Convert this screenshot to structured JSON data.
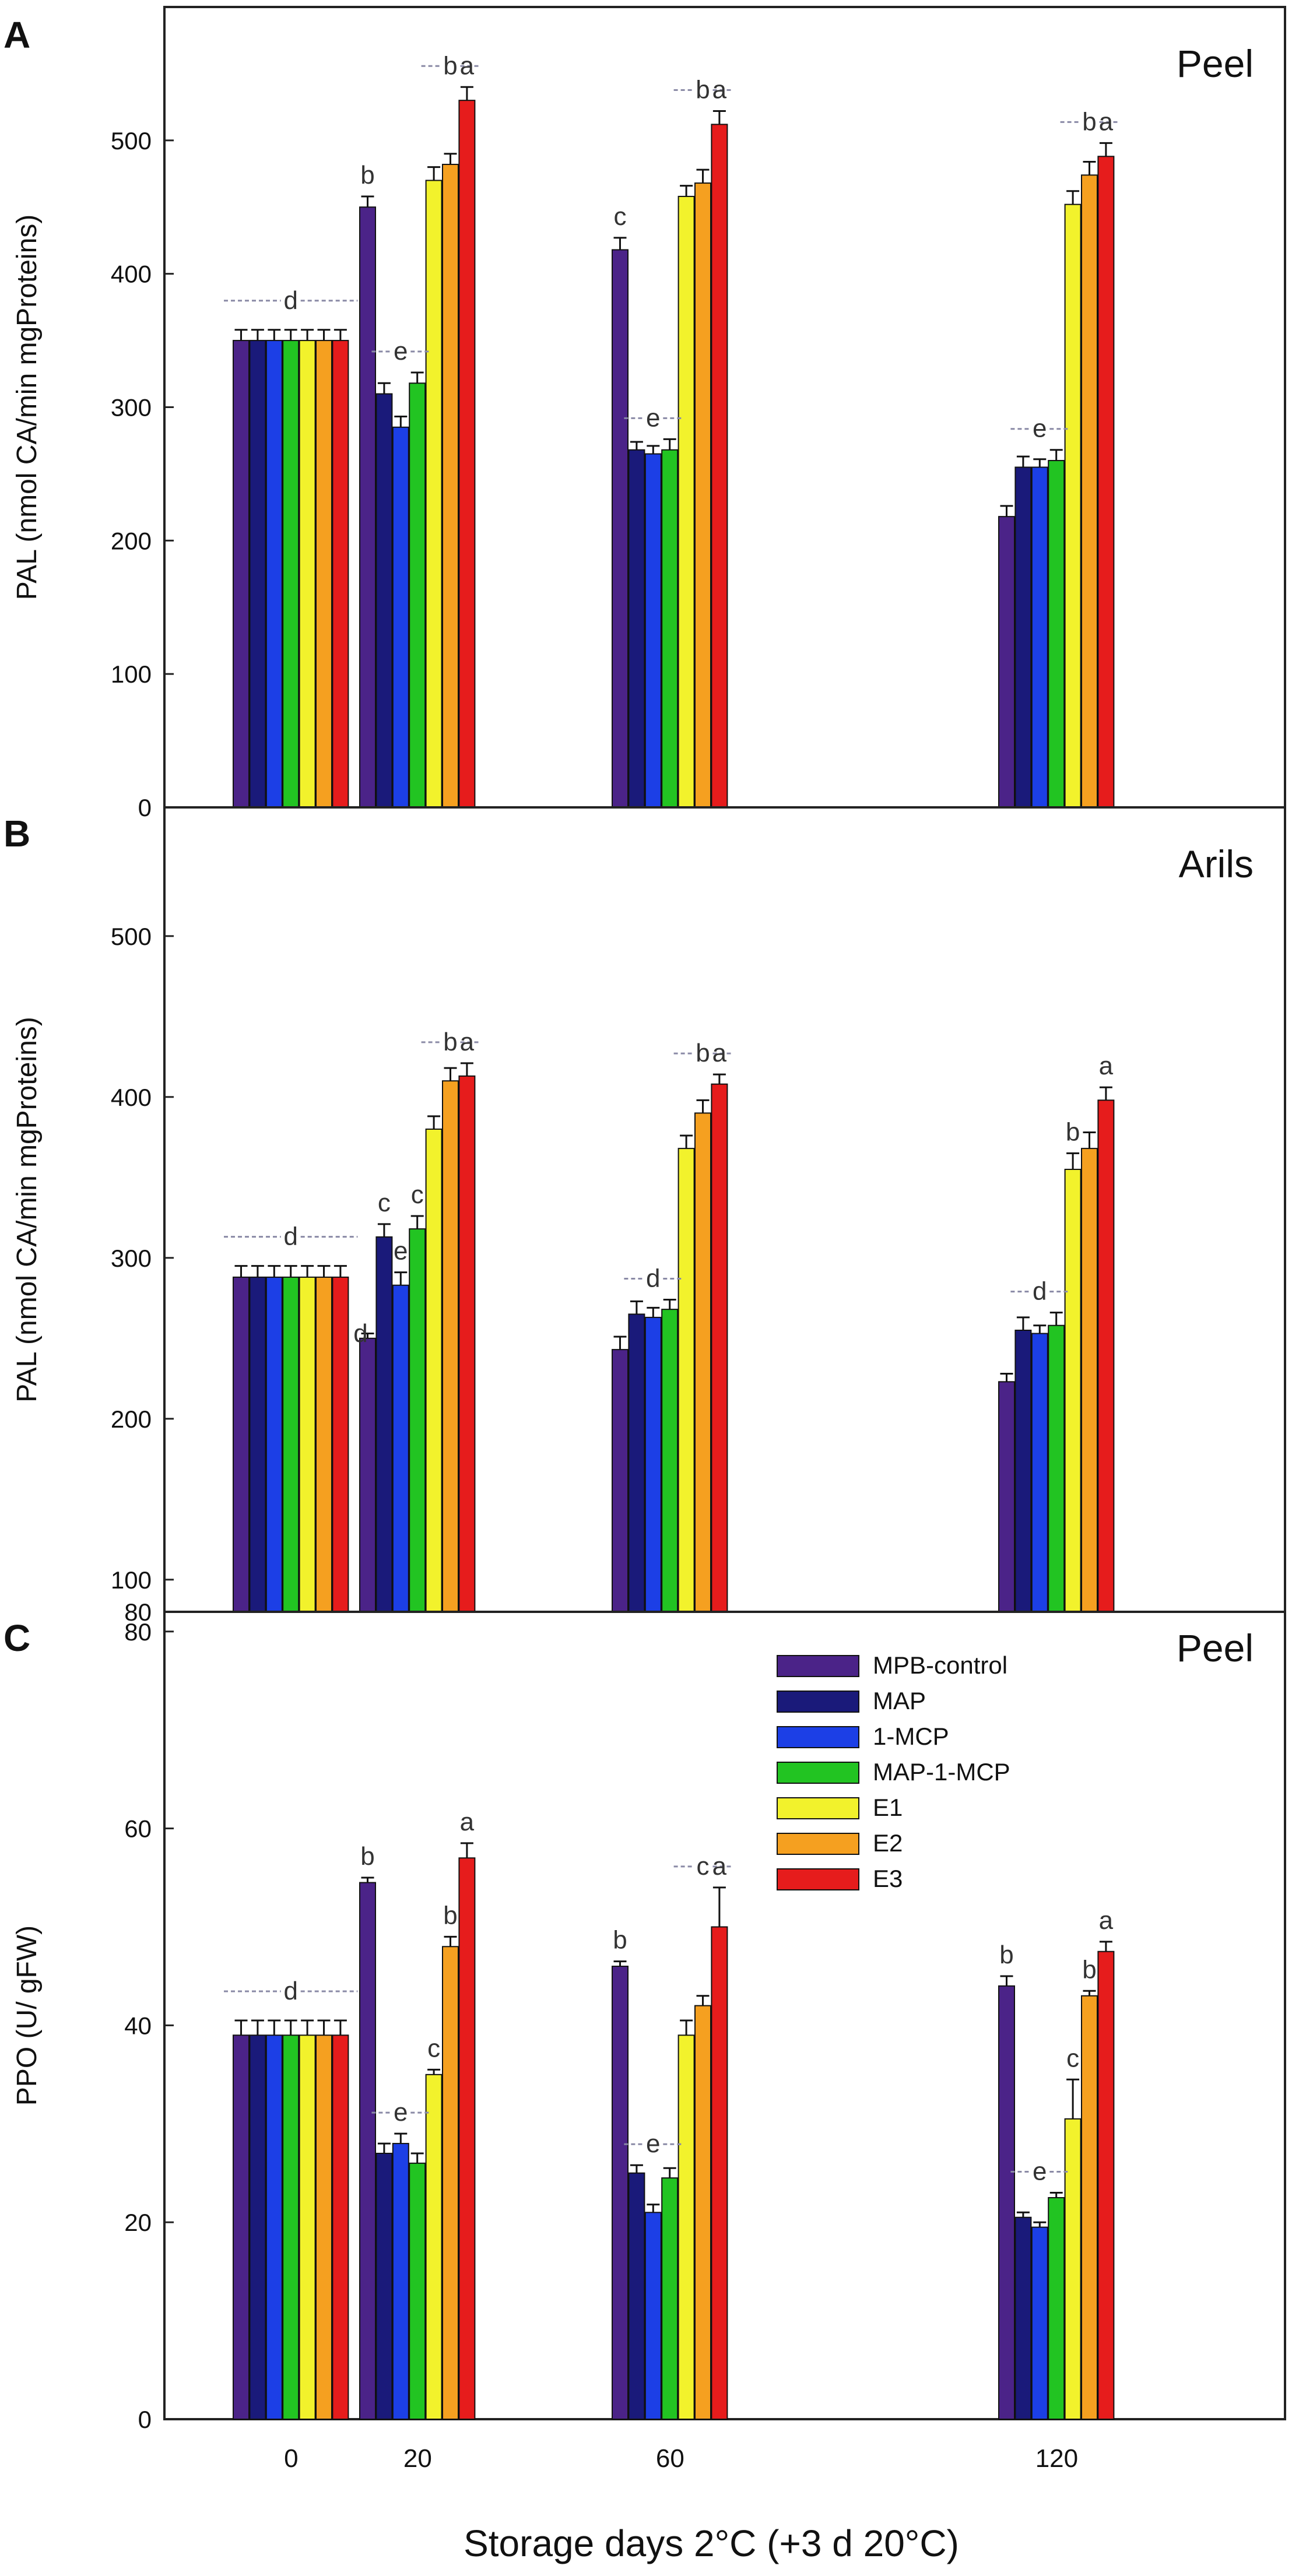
{
  "figure": {
    "xlabel": "Storage days 2°C (+3 d 20°C)",
    "xticks": [
      "0",
      "20",
      "60",
      "120"
    ],
    "legend": [
      "MPB-control",
      "MAP",
      "1-MCP",
      "MAP-1-MCP",
      "E1",
      "E2",
      "E3"
    ],
    "colors": {
      "MPB-control": "#4b2388",
      "MAP": "#1a1a7a",
      "1-MCP": "#1c3fe6",
      "MAP-1-MCP": "#22c422",
      "E1": "#f2f22c",
      "E2": "#f5a020",
      "E3": "#e61c1c"
    }
  },
  "chart_data": [
    {
      "type": "bar",
      "panel": "A",
      "title": "Peel",
      "ylabel": "PAL (nmol CA/min mgProteins)",
      "ylim": [
        0,
        600
      ],
      "yticks": [
        0,
        100,
        200,
        300,
        400,
        500
      ],
      "categories": [
        "0",
        "20",
        "60",
        "120"
      ],
      "series": [
        {
          "name": "MPB-control",
          "values": [
            350,
            450,
            418,
            218
          ],
          "errors": [
            8,
            8,
            9,
            8
          ]
        },
        {
          "name": "MAP",
          "values": [
            350,
            310,
            268,
            255
          ],
          "errors": [
            8,
            8,
            6,
            8
          ]
        },
        {
          "name": "1-MCP",
          "values": [
            350,
            285,
            265,
            255
          ],
          "errors": [
            8,
            8,
            6,
            6
          ]
        },
        {
          "name": "MAP-1-MCP",
          "values": [
            350,
            318,
            268,
            260
          ],
          "errors": [
            8,
            8,
            8,
            8
          ]
        },
        {
          "name": "E1",
          "values": [
            350,
            470,
            458,
            452
          ],
          "errors": [
            8,
            10,
            8,
            10
          ]
        },
        {
          "name": "E2",
          "values": [
            350,
            482,
            468,
            474
          ],
          "errors": [
            8,
            8,
            10,
            10
          ]
        },
        {
          "name": "E3",
          "values": [
            350,
            530,
            512,
            488
          ],
          "errors": [
            8,
            10,
            10,
            10
          ]
        }
      ],
      "annotations": [
        {
          "text": "d",
          "group": "0",
          "style": "dashed"
        },
        {
          "text": "b",
          "group": "20",
          "bar": "MPB-control"
        },
        {
          "text": "e",
          "group": "20",
          "style": "dashed"
        },
        {
          "text": "b",
          "group": "20",
          "style": "dashed"
        },
        {
          "text": "a",
          "group": "20",
          "bar": "E3"
        },
        {
          "text": "c",
          "group": "60",
          "bar": "MPB-control"
        },
        {
          "text": "e",
          "group": "60",
          "style": "dashed"
        },
        {
          "text": "b",
          "group": "60",
          "style": "dashed"
        },
        {
          "text": "a",
          "group": "60",
          "bar": "E3"
        },
        {
          "text": "e",
          "group": "120",
          "style": "dashed"
        },
        {
          "text": "b",
          "group": "120",
          "style": "dashed"
        },
        {
          "text": "a",
          "group": "120",
          "bar": "E3"
        }
      ]
    },
    {
      "type": "bar",
      "panel": "B",
      "title": "Arils",
      "ylabel": "PAL (nmol CA/min mgProteins)",
      "ylim": [
        80,
        580
      ],
      "yticks": [
        80,
        100,
        200,
        300,
        400,
        500
      ],
      "categories": [
        "0",
        "20",
        "60",
        "120"
      ],
      "series": [
        {
          "name": "MPB-control",
          "values": [
            288,
            250,
            243,
            223
          ],
          "errors": [
            7,
            3,
            8,
            5
          ]
        },
        {
          "name": "MAP",
          "values": [
            288,
            313,
            265,
            255
          ],
          "errors": [
            7,
            8,
            8,
            8
          ]
        },
        {
          "name": "1-MCP",
          "values": [
            288,
            283,
            263,
            253
          ],
          "errors": [
            7,
            8,
            6,
            5
          ]
        },
        {
          "name": "MAP-1-MCP",
          "values": [
            288,
            318,
            268,
            258
          ],
          "errors": [
            7,
            8,
            6,
            8
          ]
        },
        {
          "name": "E1",
          "values": [
            288,
            380,
            368,
            355
          ],
          "errors": [
            7,
            8,
            8,
            10
          ]
        },
        {
          "name": "E2",
          "values": [
            288,
            410,
            390,
            368
          ],
          "errors": [
            7,
            8,
            8,
            10
          ]
        },
        {
          "name": "E3",
          "values": [
            288,
            413,
            408,
            398
          ],
          "errors": [
            7,
            8,
            6,
            8
          ]
        }
      ],
      "annotations": [
        {
          "text": "d",
          "group": "0",
          "style": "dashed"
        },
        {
          "text": "d",
          "group": "20",
          "bar": "MPB-control"
        },
        {
          "text": "c",
          "group": "20",
          "bar": "MAP"
        },
        {
          "text": "e",
          "group": "20",
          "bar": "1-MCP"
        },
        {
          "text": "c",
          "group": "20",
          "bar": "MAP-1-MCP"
        },
        {
          "text": "b",
          "group": "20",
          "style": "dashed"
        },
        {
          "text": "a",
          "group": "20",
          "bar": "E3"
        },
        {
          "text": "d",
          "group": "60",
          "style": "dashed"
        },
        {
          "text": "b",
          "group": "60",
          "style": "dashed"
        },
        {
          "text": "a",
          "group": "60",
          "bar": "E3"
        },
        {
          "text": "d",
          "group": "120",
          "style": "dashed"
        },
        {
          "text": "b",
          "group": "120",
          "bar": "E1"
        },
        {
          "text": "a",
          "group": "120",
          "bar": "E3"
        }
      ]
    },
    {
      "type": "bar",
      "panel": "C",
      "title": "Peel",
      "ylabel": "PPO (U/ gFW)",
      "ylim": [
        0,
        82
      ],
      "yticks": [
        0,
        20,
        40,
        60,
        80
      ],
      "categories": [
        "0",
        "20",
        "60",
        "120"
      ],
      "series": [
        {
          "name": "MPB-control",
          "values": [
            39,
            54.5,
            46,
            44
          ],
          "errors": [
            1.5,
            0.5,
            0.5,
            1
          ]
        },
        {
          "name": "MAP",
          "values": [
            39,
            27,
            25,
            20.5
          ],
          "errors": [
            1.5,
            1,
            0.8,
            0.5
          ]
        },
        {
          "name": "1-MCP",
          "values": [
            39,
            28,
            21,
            19.5
          ],
          "errors": [
            1.5,
            1,
            0.8,
            0.5
          ]
        },
        {
          "name": "MAP-1-MCP",
          "values": [
            39,
            26,
            24.5,
            22.5
          ],
          "errors": [
            1.5,
            1,
            1,
            0.5
          ]
        },
        {
          "name": "E1",
          "values": [
            39,
            35,
            39,
            30.5
          ],
          "errors": [
            1.5,
            0.5,
            1.5,
            4
          ]
        },
        {
          "name": "E2",
          "values": [
            39,
            48,
            42,
            43
          ],
          "errors": [
            1.5,
            1,
            1,
            0.5
          ]
        },
        {
          "name": "E3",
          "values": [
            39,
            57,
            50,
            47.5
          ],
          "errors": [
            1.5,
            1.5,
            4,
            1
          ]
        }
      ],
      "annotations": [
        {
          "text": "d",
          "group": "0",
          "style": "dashed"
        },
        {
          "text": "b",
          "group": "20",
          "bar": "MPB-control"
        },
        {
          "text": "e",
          "group": "20",
          "style": "dashed"
        },
        {
          "text": "c",
          "group": "20",
          "bar": "E1"
        },
        {
          "text": "b",
          "group": "20",
          "bar": "E2"
        },
        {
          "text": "a",
          "group": "20",
          "bar": "E3"
        },
        {
          "text": "b",
          "group": "60",
          "bar": "MPB-control"
        },
        {
          "text": "e",
          "group": "60",
          "style": "dashed"
        },
        {
          "text": "c",
          "group": "60",
          "style": "dashed"
        },
        {
          "text": "a",
          "group": "60",
          "bar": "E3"
        },
        {
          "text": "b",
          "group": "120",
          "bar": "MPB-control"
        },
        {
          "text": "e",
          "group": "120",
          "style": "dashed"
        },
        {
          "text": "c",
          "group": "120",
          "bar": "E1"
        },
        {
          "text": "b",
          "group": "120",
          "bar": "E2"
        },
        {
          "text": "a",
          "group": "120",
          "bar": "E3"
        }
      ]
    }
  ]
}
